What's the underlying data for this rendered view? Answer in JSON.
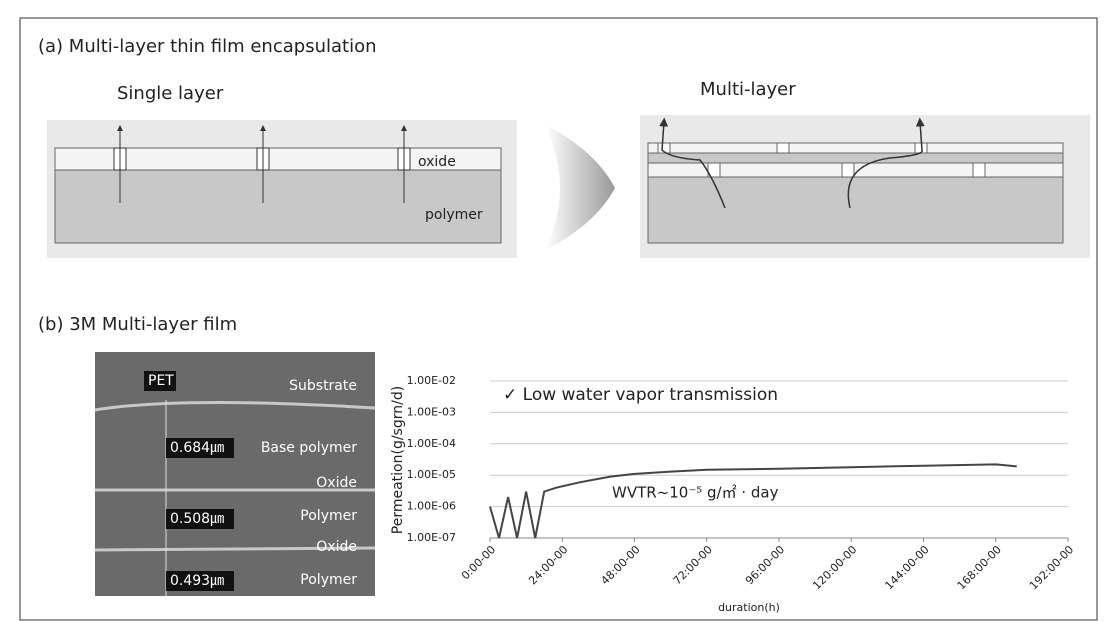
{
  "header": {
    "title_a": "(a) Multi-layer thin film encapsulation",
    "title_b": "(b) 3M Multi-layer film"
  },
  "diagram": {
    "single": {
      "label": "Single layer",
      "layers": [
        "oxide",
        "polymer"
      ]
    },
    "multi": {
      "label": "Multi-layer"
    }
  },
  "sem": {
    "labels": [
      "PET",
      "Substrate",
      "0.684㎛",
      "Base polymer",
      "Oxide",
      "0.508㎛",
      "Polymer",
      "Oxide",
      "0.493㎛",
      "Polymer"
    ]
  },
  "chart_data": {
    "type": "line",
    "yscale": "log",
    "grid": true,
    "annotations": [
      "✓ Low water vapor transmission",
      "WVTR~10⁻⁵ g/㎡ · day"
    ],
    "ylabel": "Permeation(g/sgrn/d)",
    "xlabel": "duration(h)",
    "ylim": [
      1e-07,
      0.01
    ],
    "yticks": [
      {
        "value": 1e-07,
        "label": "1.00E-07"
      },
      {
        "value": 1e-06,
        "label": "1.00E-06"
      },
      {
        "value": 1e-05,
        "label": "1.00E-05"
      },
      {
        "value": 0.0001,
        "label": "1.00E-04"
      },
      {
        "value": 0.001,
        "label": "1.00E-03"
      },
      {
        "value": 0.01,
        "label": "1.00E-02"
      }
    ],
    "xlim": [
      0,
      192
    ],
    "xticks": [
      {
        "value": 0,
        "label": "0:00-00"
      },
      {
        "value": 24,
        "label": "24:00-00"
      },
      {
        "value": 48,
        "label": "48:00-00"
      },
      {
        "value": 72,
        "label": "72:00-00"
      },
      {
        "value": 96,
        "label": "96:00-00"
      },
      {
        "value": 120,
        "label": "120:00-00"
      },
      {
        "value": 144,
        "label": "144:00-00"
      },
      {
        "value": 168,
        "label": "168:00-00"
      },
      {
        "value": 192,
        "label": "192:00-00"
      }
    ],
    "x": [
      0,
      3,
      6,
      9,
      12,
      15,
      18,
      22,
      30,
      40,
      48,
      60,
      72,
      96,
      120,
      144,
      168,
      175
    ],
    "series": [
      {
        "color": "#444444",
        "values": [
          1e-06,
          1e-07,
          2e-06,
          1e-07,
          3e-06,
          1e-07,
          3e-06,
          4e-06,
          6e-06,
          9e-06,
          1.1e-05,
          1.3e-05,
          1.5e-05,
          1.6e-05,
          1.8e-05,
          2e-05,
          2.2e-05,
          1.9e-05
        ]
      }
    ]
  }
}
